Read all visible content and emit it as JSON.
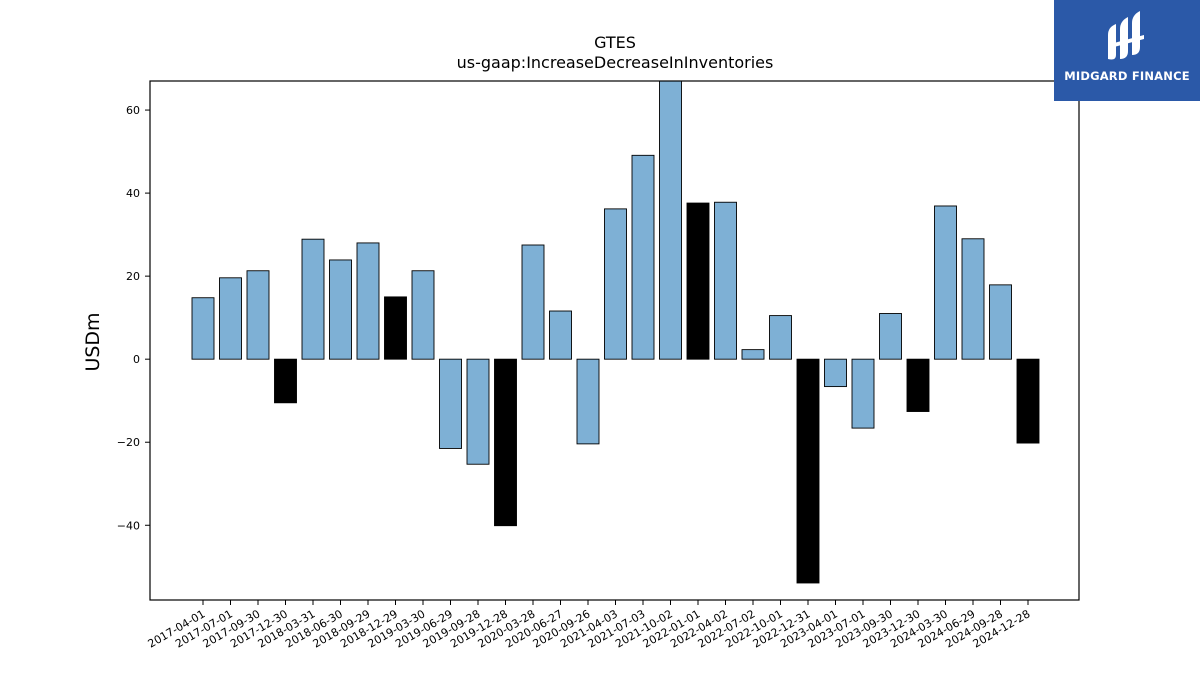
{
  "chart_data": {
    "type": "bar",
    "title": "GTES",
    "subtitle": "us-gaap:IncreaseDecreaseInInventories",
    "xlabel": "",
    "ylabel": "USDm",
    "ylim": [
      -58,
      67
    ],
    "yticks": [
      -40,
      -20,
      0,
      20,
      40,
      60
    ],
    "grid": false,
    "colors": {
      "default": "#7eb0d5",
      "highlight": "#000000",
      "edge": "#000000"
    },
    "categories": [
      "2017-04-01",
      "2017-07-01",
      "2017-09-30",
      "2017-12-30",
      "2018-03-31",
      "2018-06-30",
      "2018-09-29",
      "2018-12-29",
      "2019-03-30",
      "2019-06-29",
      "2019-09-28",
      "2019-12-28",
      "2020-03-28",
      "2020-06-27",
      "2020-09-26",
      "2021-04-03",
      "2021-07-03",
      "2021-10-02",
      "2022-01-01",
      "2022-04-02",
      "2022-07-02",
      "2022-10-01",
      "2022-12-31",
      "2023-04-01",
      "2023-07-01",
      "2023-09-30",
      "2023-12-30",
      "2024-03-30",
      "2024-06-29",
      "2024-09-28",
      "2024-12-28"
    ],
    "values": [
      14.8,
      19.6,
      21.3,
      -10.5,
      28.9,
      23.9,
      28.0,
      15.0,
      21.3,
      -21.5,
      -25.3,
      -40.1,
      27.5,
      11.6,
      -20.4,
      36.2,
      49.1,
      68.0,
      37.6,
      37.8,
      2.3,
      10.5,
      -53.9,
      -6.6,
      -16.6,
      11.0,
      -12.6,
      36.9,
      29.0,
      17.9,
      -20.2
    ],
    "highlighted": [
      false,
      false,
      false,
      true,
      false,
      false,
      false,
      true,
      false,
      false,
      false,
      true,
      false,
      false,
      false,
      false,
      false,
      false,
      true,
      false,
      false,
      false,
      true,
      false,
      false,
      false,
      true,
      false,
      false,
      false,
      true
    ]
  },
  "logo": {
    "text": "MIDGARD FINANCE",
    "icon": "midgard-logo-icon"
  }
}
